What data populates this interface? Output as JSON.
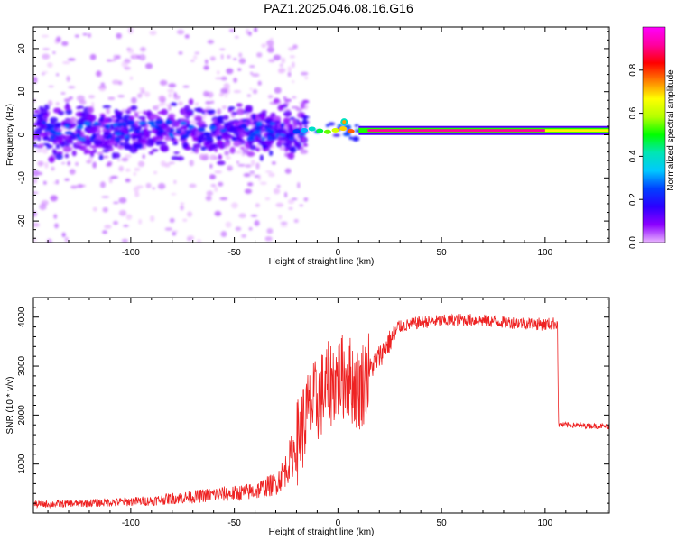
{
  "title": "PAZ1.2025.046.08.16.G16",
  "chart_data": [
    {
      "type": "heatmap",
      "name": "spectrogram",
      "xlabel": "Height of straight line (km)",
      "ylabel": "Frequency (Hz)",
      "xlim": [
        -147,
        131
      ],
      "ylim": [
        -25,
        25
      ],
      "xticks": [
        -100,
        -50,
        0,
        50,
        100
      ],
      "yticks": [
        -20,
        -10,
        0,
        10,
        20
      ],
      "colorbar": {
        "label": "Normalized spectral amplitude",
        "range": [
          0,
          1
        ],
        "ticks": [
          0.0,
          0.2,
          0.4,
          0.6,
          0.8
        ],
        "colors": [
          "#ffffff",
          "#e9b5ff",
          "#8c00ff",
          "#2b00ff",
          "#0040ff",
          "#00c8ff",
          "#00e6b4",
          "#00ff00",
          "#b4ff00",
          "#ffff00",
          "#ff8000",
          "#ff0000",
          "#ff00a0",
          "#ff00ff"
        ]
      },
      "features": {
        "noisy_region_x": [
          -147,
          -20
        ],
        "transition_x": [
          -20,
          10
        ],
        "stable_tone_x": [
          10,
          131
        ],
        "stable_tone_freq": 1
      }
    },
    {
      "type": "line",
      "name": "snr",
      "xlabel": "Height of straight line (km)",
      "ylabel": "SNR (10 * v/v)",
      "xlim": [
        -147,
        131
      ],
      "ylim": [
        0,
        4400
      ],
      "xticks": [
        -100,
        -50,
        0,
        50,
        100
      ],
      "yticks": [
        1000,
        2000,
        3000,
        4000
      ],
      "color": "#ee2222",
      "series": [
        {
          "x": [
            -147,
            -130,
            -110,
            -90,
            -80,
            -70,
            -60,
            -50,
            -40,
            -30,
            -25,
            -20,
            -15,
            -10,
            -5,
            0,
            5,
            10,
            15,
            20,
            25,
            30,
            40,
            50,
            60,
            70,
            80,
            90,
            100,
            106,
            106.5,
            110,
            120,
            131
          ],
          "y": [
            180,
            190,
            220,
            250,
            300,
            330,
            380,
            400,
            450,
            600,
            900,
            1400,
            2000,
            2300,
            2600,
            2750,
            2800,
            2500,
            2900,
            3200,
            3500,
            3800,
            3900,
            3920,
            3950,
            3930,
            3900,
            3880,
            3850,
            3880,
            1800,
            1800,
            1780,
            1770
          ]
        }
      ]
    }
  ]
}
